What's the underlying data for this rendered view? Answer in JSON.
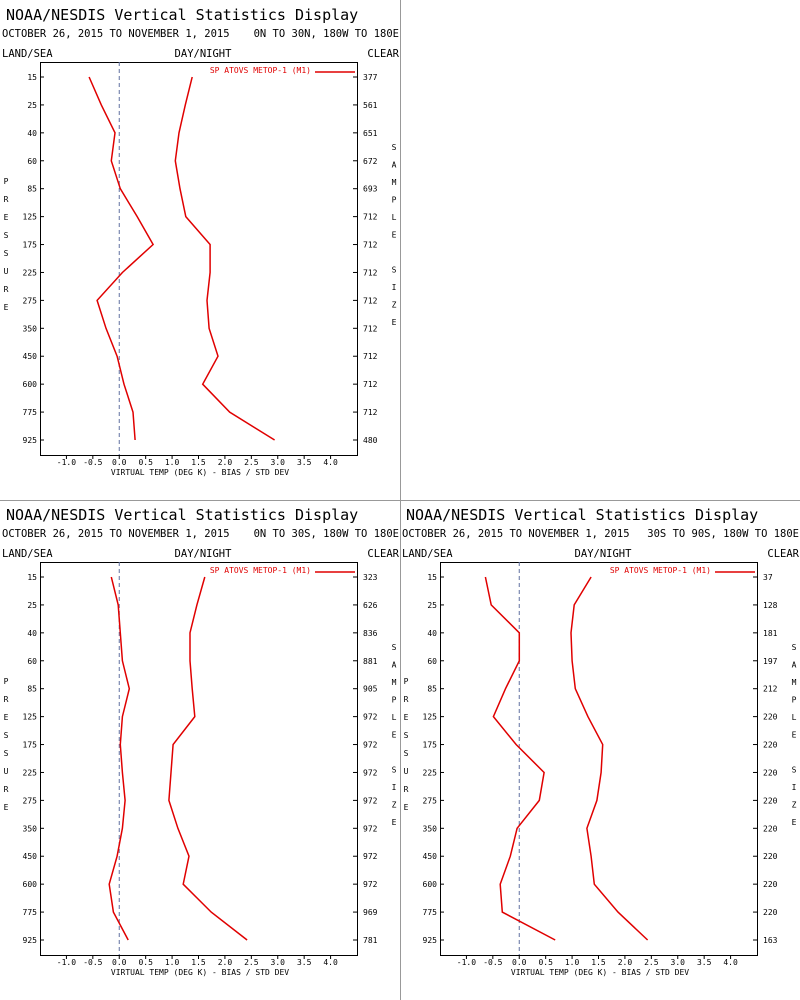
{
  "chart_data": [
    {
      "type": "line",
      "title": "NOAA/NESDIS Vertical Statistics Display",
      "subtitle": "OCTOBER 26, 2015 TO NOVEMBER 1, 2015",
      "region": "0N TO 30N, 180W TO 180E",
      "land_sea": "LAND/SEA",
      "day_night": "DAY/NIGHT",
      "clear": "CLEAR",
      "ylabel": "PRESSURE",
      "y2label": "SAMPLE SIZE",
      "xlabel": "VIRTUAL TEMP (DEG K) - BIAS / STD DEV",
      "categories": [
        15,
        25,
        40,
        60,
        85,
        125,
        175,
        225,
        275,
        350,
        450,
        600,
        775,
        925
      ],
      "sample_sizes": [
        377,
        561,
        651,
        672,
        693,
        712,
        712,
        712,
        712,
        712,
        712,
        712,
        712,
        480
      ],
      "series": [
        {
          "name": "SP ATOVS METOP-1 (M1)",
          "color": "#e00000",
          "values": [
            -0.57,
            -0.34,
            -0.08,
            -0.15,
            0.02,
            0.34,
            0.64,
            0.06,
            -0.42,
            -0.25,
            -0.04,
            0.09,
            0.26,
            0.3
          ],
          "std_dev": [
            1.38,
            1.25,
            1.13,
            1.06,
            1.15,
            1.26,
            1.72,
            1.72,
            1.66,
            1.7,
            1.87,
            1.58,
            2.09,
            2.94
          ]
        }
      ],
      "xlim": [
        -1.5,
        4.5
      ],
      "xticks": [
        {
          "value": -1,
          "label": "-1.0"
        },
        -0.5,
        {
          "value": 0,
          "label": "0.0"
        },
        0.5,
        {
          "value": 1,
          "label": "1.0"
        },
        1.5,
        {
          "value": 2,
          "label": "2.0"
        },
        2.5,
        {
          "value": 3,
          "label": "3.0"
        },
        3.5,
        {
          "value": 4,
          "label": "4.0"
        }
      ]
    },
    {
      "type": "line",
      "title": "NOAA/NESDIS Vertical Statistics Display",
      "subtitle": "OCTOBER 26, 2015 TO NOVEMBER 1, 2015",
      "region": "0N TO 30S, 180W TO 180E",
      "land_sea": "LAND/SEA",
      "day_night": "DAY/NIGHT",
      "clear": "CLEAR",
      "ylabel": "PRESSURE",
      "y2label": "SAMPLE SIZE",
      "xlabel": "VIRTUAL TEMP (DEG K) - BIAS / STD DEV",
      "categories": [
        15,
        25,
        40,
        60,
        85,
        125,
        175,
        225,
        275,
        350,
        450,
        600,
        775,
        925
      ],
      "sample_sizes": [
        323,
        626,
        836,
        881,
        905,
        972,
        972,
        972,
        972,
        972,
        972,
        972,
        969,
        781
      ],
      "series": [
        {
          "name": "SP ATOVS METOP-1 (M1)",
          "color": "#e00000",
          "values": [
            -0.15,
            -0.02,
            0.02,
            0.06,
            0.19,
            0.06,
            0.02,
            0.06,
            0.11,
            0.06,
            -0.04,
            -0.19,
            -0.11,
            0.17
          ],
          "std_dev": [
            1.62,
            1.47,
            1.34,
            1.34,
            1.38,
            1.43,
            1.02,
            0.98,
            0.94,
            1.11,
            1.32,
            1.21,
            1.74,
            2.42
          ]
        }
      ],
      "xlim": [
        -1.5,
        4.5
      ],
      "xticks": [
        {
          "value": -1,
          "label": "-1.0"
        },
        -0.5,
        {
          "value": 0,
          "label": "0.0"
        },
        0.5,
        {
          "value": 1,
          "label": "1.0"
        },
        1.5,
        {
          "value": 2,
          "label": "2.0"
        },
        2.5,
        {
          "value": 3,
          "label": "3.0"
        },
        3.5,
        {
          "value": 4,
          "label": "4.0"
        }
      ]
    },
    {
      "type": "line",
      "title": "NOAA/NESDIS Vertical Statistics Display",
      "subtitle": "OCTOBER 26, 2015 TO NOVEMBER 1, 2015",
      "region": "30S TO 90S, 180W TO 180E",
      "land_sea": "LAND/SEA",
      "day_night": "DAY/NIGHT",
      "clear": "CLEAR",
      "ylabel": "PRESSURE",
      "y2label": "SAMPLE SIZE",
      "xlabel": "VIRTUAL TEMP (DEG K) - BIAS / STD DEV",
      "categories": [
        15,
        25,
        40,
        60,
        85,
        125,
        175,
        225,
        275,
        350,
        450,
        600,
        775,
        925
      ],
      "sample_sizes": [
        37,
        128,
        181,
        197,
        212,
        220,
        220,
        220,
        220,
        220,
        220,
        220,
        220,
        163
      ],
      "series": [
        {
          "name": "SP ATOVS METOP-1 (M1)",
          "color": "#e00000",
          "values": [
            -0.64,
            -0.53,
            0.0,
            0.0,
            -0.26,
            -0.49,
            -0.06,
            0.47,
            0.38,
            -0.04,
            -0.17,
            -0.36,
            -0.32,
            0.68
          ],
          "std_dev": [
            1.36,
            1.04,
            0.98,
            1.0,
            1.06,
            1.3,
            1.58,
            1.55,
            1.47,
            1.28,
            1.36,
            1.42,
            1.87,
            2.43
          ]
        }
      ],
      "xlim": [
        -1.5,
        4.5
      ],
      "xticks": [
        {
          "value": -1,
          "label": "-1.0"
        },
        -0.5,
        {
          "value": 0,
          "label": "0.0"
        },
        0.5,
        {
          "value": 1,
          "label": "1.0"
        },
        1.5,
        {
          "value": 2,
          "label": "2.0"
        },
        2.5,
        {
          "value": 3,
          "label": "3.0"
        },
        3.5,
        {
          "value": 4,
          "label": "4.0"
        }
      ]
    }
  ]
}
